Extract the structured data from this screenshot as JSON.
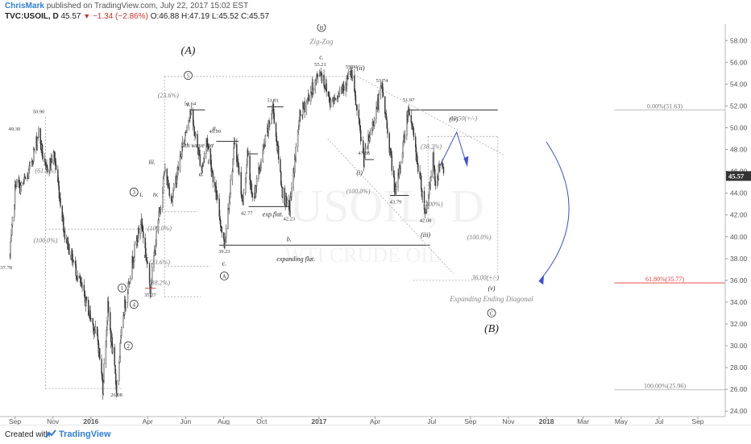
{
  "header": {
    "author": "ChrisMark",
    "published": "published on TradingView.com, July 22, 2017 15:02 EST",
    "symbol": "TVC:USOIL, D",
    "last": "45.57",
    "arrow": "▼",
    "change": "−1.34 (−2.86%)",
    "ohlc": "O:46.88 H:47.19 L:45.52 C:45.57"
  },
  "watermark": {
    "symbol": "USOIL, D",
    "name": "WTI CRUDE OIL"
  },
  "footer": {
    "created": "Created with",
    "brand": "TradingView"
  },
  "colors": {
    "up": "#333333",
    "down": "#333333",
    "accent_blue": "#3d4fd6",
    "fib_red": "#e53935",
    "price_tag": "#333333"
  },
  "chart_data": {
    "type": "candlestick",
    "symbol": "TVC:USOIL",
    "timeframe": "D",
    "x_tick_labels": [
      "Sep",
      "Nov",
      "2016",
      "Apr",
      "Jun",
      "Aug",
      "Oct",
      "2017",
      "Apr",
      "Jul",
      "Sep",
      "Nov",
      "2018",
      "Mar",
      "May",
      "Jul",
      "Sep"
    ],
    "y_tick_labels": [
      "24.00",
      "26.00",
      "28.00",
      "30.00",
      "32.00",
      "34.00",
      "36.00",
      "38.00",
      "40.00",
      "42.00",
      "44.00",
      "46.00",
      "48.00",
      "50.00",
      "52.00",
      "54.00",
      "56.00",
      "58.00"
    ],
    "ylim": [
      23.5,
      59.5
    ],
    "last_price": 45.57,
    "series": [
      {
        "name": "USOIL",
        "path": [
          [
            "2015-08-24",
            38.2
          ],
          [
            "2015-09-02",
            45.0
          ],
          [
            "2015-09-10",
            44.5
          ],
          [
            "2015-09-22",
            45.6
          ],
          [
            "2015-10-09",
            49.6
          ],
          [
            "2015-10-20",
            46.0
          ],
          [
            "2015-11-03",
            47.5
          ],
          [
            "2015-11-20",
            40.2
          ],
          [
            "2015-12-21",
            34.5
          ],
          [
            "2016-01-12",
            30.5
          ],
          [
            "2016-01-20",
            26.2
          ],
          [
            "2016-01-28",
            33.5
          ],
          [
            "2016-02-11",
            26.08
          ],
          [
            "2016-02-22",
            33.0
          ],
          [
            "2016-03-08",
            38.0
          ],
          [
            "2016-03-22",
            41.5
          ],
          [
            "2016-04-05",
            35.3
          ],
          [
            "2016-04-28",
            46.0
          ],
          [
            "2016-05-10",
            43.5
          ],
          [
            "2016-06-08",
            51.64
          ],
          [
            "2016-06-27",
            46.2
          ],
          [
            "2016-07-05",
            49.0
          ],
          [
            "2016-08-02",
            39.23
          ],
          [
            "2016-08-19",
            48.75
          ],
          [
            "2016-09-01",
            43.0
          ],
          [
            "2016-09-08",
            47.6
          ],
          [
            "2016-09-16",
            43.2
          ],
          [
            "2016-10-19",
            51.91
          ],
          [
            "2016-11-03",
            44.2
          ],
          [
            "2016-11-14",
            42.23
          ],
          [
            "2016-12-01",
            51.0
          ],
          [
            "2017-01-03",
            55.21
          ],
          [
            "2017-01-20",
            52.3
          ],
          [
            "2017-02-22",
            55.0
          ],
          [
            "2017-03-14",
            47.08
          ],
          [
            "2017-04-12",
            53.74
          ],
          [
            "2017-05-04",
            43.79
          ],
          [
            "2017-05-25",
            51.97
          ],
          [
            "2017-06-21",
            42.08
          ],
          [
            "2017-07-03",
            47.2
          ],
          [
            "2017-07-07",
            44.2
          ],
          [
            "2017-07-14",
            47.0
          ],
          [
            "2017-07-21",
            45.57
          ]
        ]
      }
    ],
    "price_labels": [
      {
        "x": "2015-08-18",
        "y": 37.78,
        "text": "37.78"
      },
      {
        "x": "2015-08-31",
        "y": 49.3,
        "text": "49.30"
      },
      {
        "x": "2015-10-09",
        "y": 50.9,
        "text": "50.90"
      },
      {
        "x": "2016-02-11",
        "y": 26.08,
        "text": "26.08"
      },
      {
        "x": "2016-04-05",
        "y": 35.27,
        "text": "35.27"
      },
      {
        "x": "2016-06-08",
        "y": 51.64,
        "text": "51.64"
      },
      {
        "x": "2016-07-18",
        "y": 49.09,
        "text": "49.09"
      },
      {
        "x": "2016-08-02",
        "y": 39.23,
        "text": "39.23"
      },
      {
        "x": "2016-09-07",
        "y": 42.77,
        "text": "42.77"
      },
      {
        "x": "2016-10-19",
        "y": 51.91,
        "text": "51.91"
      },
      {
        "x": "2016-11-14",
        "y": 42.23,
        "text": "42.23"
      },
      {
        "x": "2017-01-03",
        "y": 55.21,
        "text": "55.21"
      },
      {
        "x": "2017-02-22",
        "y": 55.0,
        "text": "55.00"
      },
      {
        "x": "2017-03-14",
        "y": 47.08,
        "text": "47.08"
      },
      {
        "x": "2017-04-12",
        "y": 53.74,
        "text": "53.74"
      },
      {
        "x": "2017-05-04",
        "y": 43.79,
        "text": "43.79"
      },
      {
        "x": "2017-05-25",
        "y": 51.97,
        "text": "51.97"
      },
      {
        "x": "2017-06-21",
        "y": 42.08,
        "text": "42.08"
      }
    ],
    "wave_labels": [
      {
        "x": "2016-06-05",
        "y": 57.0,
        "text": "(A)"
      },
      {
        "x": "2016-06-05",
        "y": 54.8,
        "text": "5",
        "circled": true
      },
      {
        "x": "2016-06-05",
        "y": 52.2,
        "text": "v."
      },
      {
        "x": "2016-06-20",
        "y": 48.4,
        "text": "5th wave ext"
      },
      {
        "x": "2016-04-08",
        "y": 46.9,
        "text": "iii."
      },
      {
        "x": "2016-03-22",
        "y": 43.9,
        "text": "i."
      },
      {
        "x": "2016-03-10",
        "y": 44.1,
        "text": "3",
        "circled": true
      },
      {
        "x": "2016-04-14",
        "y": 43.9,
        "text": "iv."
      },
      {
        "x": "2016-03-30",
        "y": 38.3,
        "text": "ii."
      },
      {
        "x": "2016-03-10",
        "y": 33.8,
        "text": "4",
        "circled": true
      },
      {
        "x": "2016-02-20",
        "y": 35.3,
        "text": "1",
        "circled": true
      },
      {
        "x": "2016-03-01",
        "y": 30.0,
        "text": "2",
        "circled": true
      },
      {
        "x": "2016-07-18",
        "y": 50.0,
        "text": "a."
      },
      {
        "x": "2016-06-26",
        "y": 45.8,
        "text": "a."
      },
      {
        "x": "2016-07-10",
        "y": 46.9,
        "text": "b."
      },
      {
        "x": "2016-08-02",
        "y": 37.6,
        "text": "c."
      },
      {
        "x": "2016-08-02",
        "y": 36.4,
        "text": "A",
        "circled": true
      },
      {
        "x": "2016-11-14",
        "y": 39.8,
        "text": "b."
      },
      {
        "x": "2017-01-05",
        "y": 59.2,
        "text": "B",
        "circled": true
      },
      {
        "x": "2017-01-05",
        "y": 57.9,
        "text": "Zig-Zag"
      },
      {
        "x": "2017-01-05",
        "y": 56.5,
        "text": "c."
      },
      {
        "x": "2017-03-09",
        "y": 55.5,
        "text": "(ii)"
      },
      {
        "x": "2017-03-07",
        "y": 45.9,
        "text": "(i)"
      },
      {
        "x": "2017-06-21",
        "y": 40.2,
        "text": "(iii)"
      },
      {
        "x": "2017-08-05",
        "y": 50.8,
        "text": "(iv)"
      },
      {
        "x": "2017-10-05",
        "y": 35.3,
        "text": "(v)"
      },
      {
        "x": "2017-10-05",
        "y": 34.3,
        "text": "Expanding Ending Diagonal"
      },
      {
        "x": "2017-10-05",
        "y": 33.0,
        "text": "C",
        "circled": true
      },
      {
        "x": "2017-10-05",
        "y": 31.5,
        "text": "(B)"
      },
      {
        "x": "2016-10-19",
        "y": 42.1,
        "text": "exp.flat."
      },
      {
        "x": "2016-11-25",
        "y": 38.0,
        "text": "expanding flat."
      }
    ],
    "fib_labels": [
      {
        "x": "2016-05-04",
        "y": 53.0,
        "text": "(23.6%)"
      },
      {
        "x": "2015-10-20",
        "y": 46.1,
        "text": "(61.8%)"
      },
      {
        "x": "2015-10-20",
        "y": 39.7,
        "text": "(100.0%)"
      },
      {
        "x": "2016-04-20",
        "y": 40.8,
        "text": "(100.0%)"
      },
      {
        "x": "2016-04-20",
        "y": 37.7,
        "text": "(23.6%)"
      },
      {
        "x": "2016-04-20",
        "y": 35.8,
        "text": "(38.2%)"
      },
      {
        "x": "2017-03-05",
        "y": 44.2,
        "text": "(100.0%)"
      },
      {
        "x": "2017-06-30",
        "y": 48.3,
        "text": "(38.2%)"
      },
      {
        "x": "2017-07-03",
        "y": 43.0,
        "text": "(100%)"
      },
      {
        "x": "2017-09-15",
        "y": 40.0,
        "text": "(100.0%)"
      },
      {
        "x": "2017-08-21",
        "y": 50.9,
        "text": "49.50(+/-)"
      },
      {
        "x": "2017-09-25",
        "y": 36.3,
        "text": "36.00(+/-)"
      },
      {
        "x": "2018-07-10",
        "y": 51.63,
        "text": "0.00%(51.63)"
      },
      {
        "x": "2018-07-10",
        "y": 35.77,
        "text": "61.80%(35.77)"
      },
      {
        "x": "2018-07-10",
        "y": 25.96,
        "text": "100.00%(25.96)"
      }
    ],
    "fib_levels": [
      {
        "pct": "0.00%",
        "value": 51.63
      },
      {
        "pct": "61.80%",
        "value": 35.77
      },
      {
        "pct": "100.00%",
        "value": 25.96
      }
    ]
  }
}
